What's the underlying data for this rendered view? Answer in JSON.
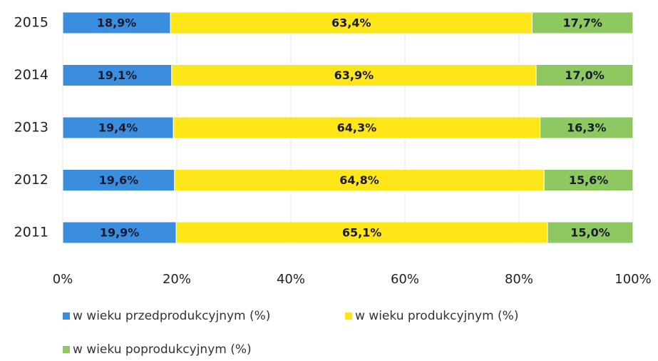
{
  "chart_data": {
    "type": "stacked_barh",
    "categories": [
      "2015",
      "2014",
      "2013",
      "2012",
      "2011"
    ],
    "series": [
      {
        "name": "w wieku przedprodukcyjnym (%)",
        "color": "#3b8ede",
        "values": [
          18.9,
          19.1,
          19.4,
          19.6,
          19.9
        ],
        "value_labels": [
          "18,9%",
          "19,1%",
          "19,4%",
          "19,6%",
          "19,9%"
        ]
      },
      {
        "name": "w wieku produkcyjnym (%)",
        "color": "#ffe619",
        "values": [
          63.4,
          63.9,
          64.3,
          64.8,
          65.1
        ],
        "value_labels": [
          "63,4%",
          "63,9%",
          "64,3%",
          "64,8%",
          "65,1%"
        ]
      },
      {
        "name": "w wieku poprodukcyjnym (%)",
        "color": "#8dc860",
        "values": [
          17.7,
          17.0,
          16.3,
          15.6,
          15.0
        ],
        "value_labels": [
          "17,7%",
          "17,0%",
          "16,3%",
          "15,6%",
          "15,0%"
        ]
      }
    ],
    "xlim": [
      0,
      100
    ],
    "xticks": [
      {
        "value": 0,
        "label": "0%"
      },
      {
        "value": 20,
        "label": "20%"
      },
      {
        "value": 40,
        "label": "40%"
      },
      {
        "value": 60,
        "label": "60%"
      },
      {
        "value": 80,
        "label": "80%"
      },
      {
        "value": 100,
        "label": "100%"
      }
    ],
    "legend": "bottom"
  }
}
